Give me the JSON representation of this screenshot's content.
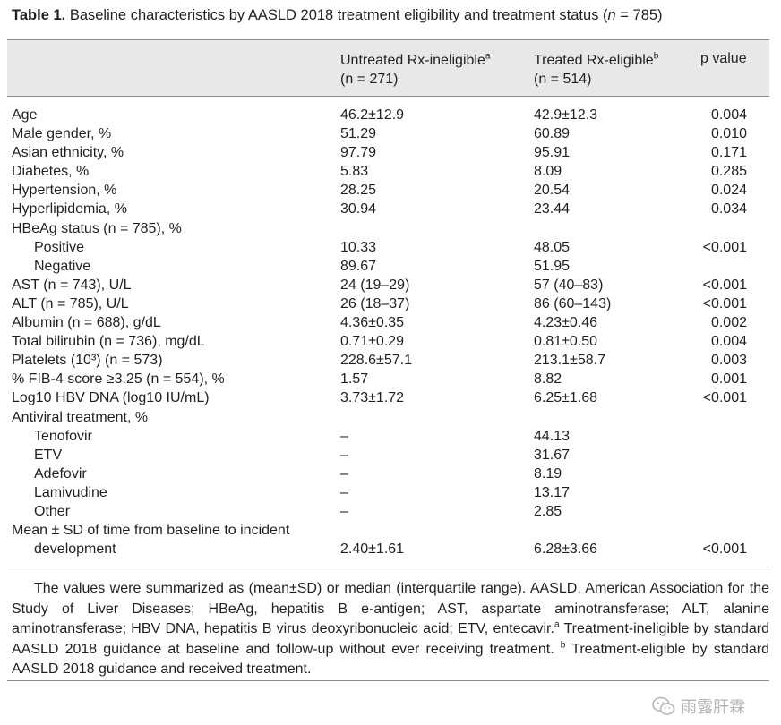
{
  "title": {
    "label": "Table 1.",
    "text_before": "Baseline characteristics by AASLD 2018 treatment eligibility and treatment status (",
    "n": "n",
    "text_after": " = 785)"
  },
  "header": {
    "col1": {
      "label": "Untreated Rx-ineligible",
      "sup": "a",
      "n_line": "(n = 271)"
    },
    "col2": {
      "label": "Treated Rx-eligible",
      "sup": "b",
      "n_line": "(n = 514)"
    },
    "col3": {
      "label": "p value"
    }
  },
  "rows": [
    {
      "label": "Age",
      "c1": "46.2±12.9",
      "c2": "42.9±12.3",
      "p": "0.004"
    },
    {
      "label": "Male gender, %",
      "c1": "51.29",
      "c2": "60.89",
      "p": "0.010"
    },
    {
      "label": "Asian ethnicity, %",
      "c1": "97.79",
      "c2": "95.91",
      "p": "0.171"
    },
    {
      "label": "Diabetes, %",
      "c1": "5.83",
      "c2": "8.09",
      "p": "0.285"
    },
    {
      "label": "Hypertension, %",
      "c1": "28.25",
      "c2": "20.54",
      "p": "0.024"
    },
    {
      "label": "Hyperlipidemia, %",
      "c1": "30.94",
      "c2": "23.44",
      "p": "0.034"
    },
    {
      "label": "HBeAg status (n = 785), %",
      "c1": "",
      "c2": "",
      "p": ""
    },
    {
      "label": "Positive",
      "c1": "10.33",
      "c2": "48.05",
      "p": "<0.001"
    },
    {
      "label": "Negative",
      "c1": "89.67",
      "c2": "51.95",
      "p": ""
    },
    {
      "label": "AST (n = 743), U/L",
      "c1": "24 (19–29)",
      "c2": "57 (40–83)",
      "p": "<0.001"
    },
    {
      "label": "ALT (n = 785), U/L",
      "c1": "26 (18–37)",
      "c2": "86 (60–143)",
      "p": "<0.001"
    },
    {
      "label": "Albumin (n = 688), g/dL",
      "c1": "4.36±0.35",
      "c2": "4.23±0.46",
      "p": "0.002"
    },
    {
      "label": "Total bilirubin (n = 736), mg/dL",
      "c1": "0.71±0.29",
      "c2": "0.81±0.50",
      "p": "0.004"
    },
    {
      "label": "Platelets (10³) (n = 573)",
      "c1": "228.6±57.1",
      "c2": "213.1±58.7",
      "p": "0.003"
    },
    {
      "label": "% FIB-4 score ≥3.25 (n = 554), %",
      "c1": "1.57",
      "c2": "8.82",
      "p": "0.001"
    },
    {
      "label": "Log10 HBV DNA (log10 IU/mL)",
      "c1": "3.73±1.72",
      "c2": "6.25±1.68",
      "p": "<0.001"
    },
    {
      "label": "Antiviral treatment, %",
      "c1": "",
      "c2": "",
      "p": ""
    },
    {
      "label": "Tenofovir",
      "c1": "–",
      "c2": "44.13",
      "p": ""
    },
    {
      "label": "ETV",
      "c1": "–",
      "c2": "31.67",
      "p": ""
    },
    {
      "label": "Adefovir",
      "c1": "–",
      "c2": "8.19",
      "p": ""
    },
    {
      "label": "Lamivudine",
      "c1": "–",
      "c2": "13.17",
      "p": ""
    },
    {
      "label": "Other",
      "c1": "–",
      "c2": "2.85",
      "p": ""
    },
    {
      "label": "Mean ± SD of time from baseline to incident",
      "c1": "",
      "c2": "",
      "p": ""
    },
    {
      "label": "development",
      "c1": "2.40±1.61",
      "c2": "6.28±3.66",
      "p": "<0.001"
    }
  ],
  "footnote": {
    "text": "The values were summarized as (mean±SD) or median (interquartile range). AASLD, American Association for the Study of Liver Diseases; HBeAg, hepatitis B e-antigen; AST, aspartate aminotransferase; ALT, alanine aminotransferase; HBV DNA, hepatitis B virus deoxyribonucleic acid; ETV, entecavir.",
    "note_a_sup": "a",
    "note_a": " Treatment-ineligible by standard AASLD 2018 guidance at baseline and follow-up without ever receiving treatment.",
    "note_b_sup": "b",
    "note_b": " Treatment-eligible by standard AASLD 2018 guidance and received treatment."
  },
  "watermark": {
    "text": "雨露肝霖"
  }
}
